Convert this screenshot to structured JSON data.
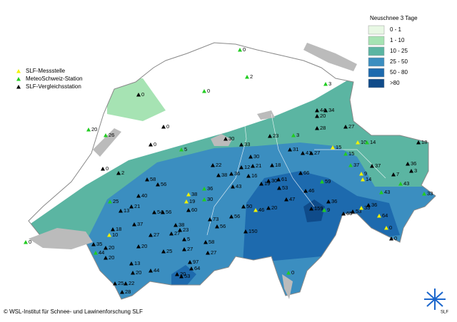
{
  "legend": {
    "title": "Neuschnee 3 Tage",
    "classes": [
      {
        "label": "0 - 1",
        "color": "#e8f8e4"
      },
      {
        "label": "1 - 10",
        "color": "#a6e3b3"
      },
      {
        "label": "10 - 25",
        "color": "#5bb5a2"
      },
      {
        "label": "25 - 50",
        "color": "#3b8ec0"
      },
      {
        "label": "50 - 80",
        "color": "#1d6aae"
      },
      {
        "label": ">80",
        "color": "#0f4b8a"
      }
    ]
  },
  "station_legend": [
    {
      "label": "SLF-Messstelle",
      "color": "#f2f200"
    },
    {
      "label": "MeteoSchweiz-Station",
      "color": "#22cc22"
    },
    {
      "label": "SLF-Vergleichsstation",
      "color": "#000000"
    }
  ],
  "station_labels": [
    0,
    2,
    0,
    0,
    3,
    20,
    26,
    0,
    0,
    5,
    0,
    2,
    30,
    23,
    3,
    44,
    20,
    34,
    28,
    27,
    33,
    31,
    41,
    27,
    15,
    15,
    10,
    14,
    18,
    22,
    30,
    12,
    21,
    18,
    38,
    36,
    43,
    16,
    19,
    58,
    56,
    40,
    25,
    13,
    21,
    54,
    56,
    38,
    19,
    60,
    36,
    30,
    37,
    18,
    10,
    27,
    27,
    38,
    23,
    5,
    73,
    56,
    56,
    50,
    150,
    46,
    20,
    30,
    61,
    53,
    66,
    46,
    59,
    159,
    36,
    9,
    47,
    65,
    53,
    33,
    36,
    64,
    0,
    0,
    43,
    7,
    43,
    36,
    3,
    33,
    37,
    9,
    14,
    37,
    20,
    35,
    44,
    20,
    25,
    27,
    58,
    27,
    97,
    64,
    20,
    53,
    20,
    13,
    20,
    44,
    25,
    28,
    22,
    0,
    0
  ],
  "copyright": "© WSL-Institut für Schnee- und Lawinenforschung SLF",
  "logo": "SLF"
}
